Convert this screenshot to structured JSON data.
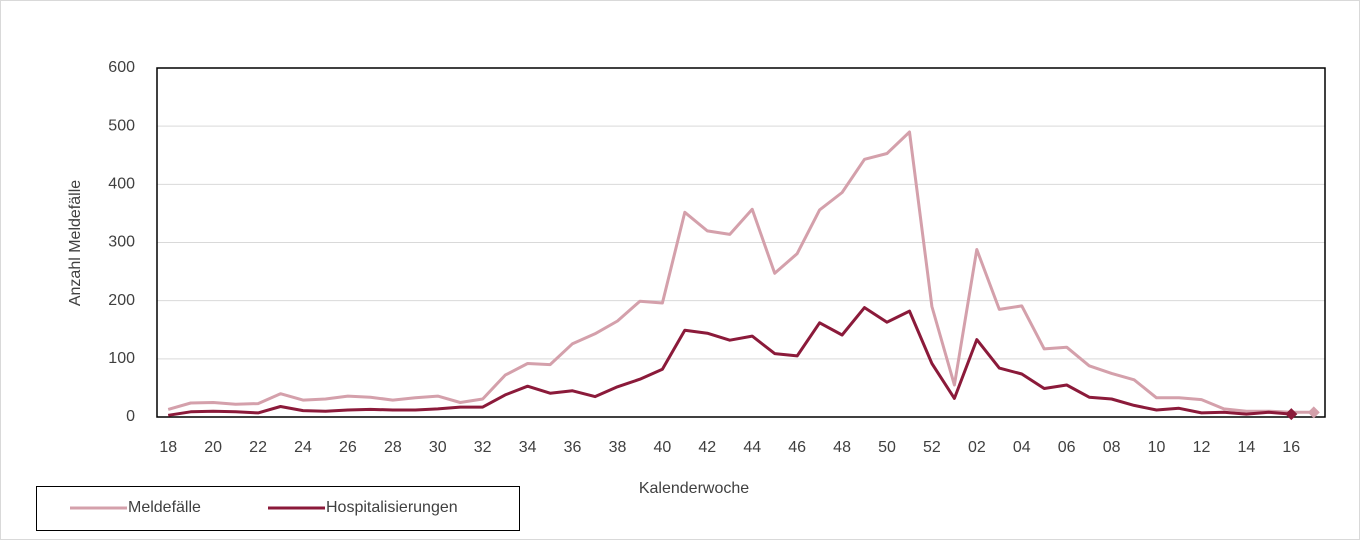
{
  "chart_data": {
    "type": "line",
    "x_label": "Kalenderwoche",
    "y_label": "Anzahl Meldefälle",
    "categories": [
      "18",
      null,
      "20",
      null,
      "22",
      null,
      "24",
      null,
      "26",
      null,
      "28",
      null,
      "30",
      null,
      "32",
      null,
      "34",
      null,
      "36",
      null,
      "38",
      null,
      "40",
      null,
      "42",
      null,
      "44",
      null,
      "46",
      null,
      "48",
      null,
      "50",
      null,
      "52",
      null,
      "02",
      null,
      "04",
      null,
      "06",
      null,
      "08",
      null,
      "10",
      null,
      "12",
      null,
      "14",
      null,
      "16",
      null
    ],
    "series": [
      {
        "name": "Meldefälle",
        "color": "#d4a0ab",
        "values": [
          13,
          24,
          25,
          22,
          23,
          40,
          29,
          31,
          36,
          34,
          29,
          33,
          36,
          25,
          31,
          72,
          92,
          90,
          126,
          143,
          165,
          199,
          196,
          352,
          320,
          314,
          357,
          247,
          281,
          356,
          386,
          443,
          453,
          490,
          190,
          55,
          288,
          185,
          191,
          117,
          120,
          88,
          75,
          64,
          33,
          33,
          30,
          14,
          10,
          10,
          8,
          8
        ]
      },
      {
        "name": "Hospitalisierungen",
        "color": "#8b1a3a",
        "values": [
          3,
          9,
          10,
          9,
          7,
          18,
          11,
          10,
          12,
          13,
          12,
          12,
          14,
          17,
          17,
          38,
          53,
          41,
          45,
          35,
          52,
          65,
          82,
          149,
          144,
          132,
          139,
          109,
          105,
          162,
          141,
          188,
          163,
          182,
          92,
          32,
          133,
          84,
          74,
          49,
          55,
          34,
          31,
          20,
          12,
          15,
          7,
          8,
          5,
          8,
          5,
          null
        ]
      }
    ],
    "ylim": [
      0,
      600
    ],
    "yticks": [
      0,
      100,
      200,
      300,
      400,
      500,
      600
    ],
    "grid": true,
    "legend": "bottom-left"
  }
}
